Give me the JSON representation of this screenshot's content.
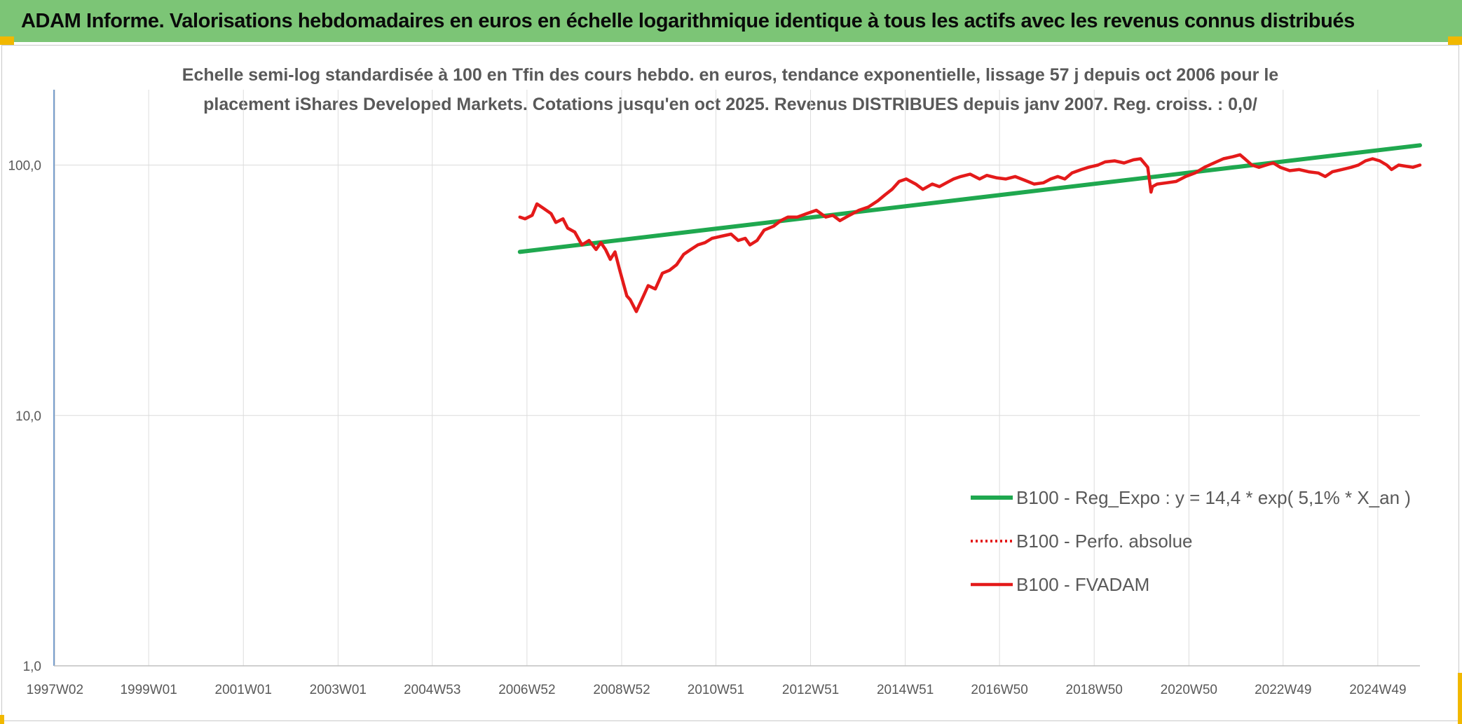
{
  "banner": {
    "title": "ADAM Informe. Valorisations hebdomadaires en euros en échelle logarithmique identique à tous les actifs avec les revenus connus distribués"
  },
  "colors": {
    "banner": "#7cc576",
    "accent_corner": "#f1b800",
    "regression": "#1fa84f",
    "fvadam": "#e41a1a",
    "perfo": "#e41a1a",
    "grid": "#dcdcdc",
    "text": "#595959"
  },
  "chart_data": {
    "type": "line",
    "title_lines": [
      "Echelle semi-log standardisée à 100 en Tfin des cours hebdo. en euros, tendance exponentielle, lissage 57 j depuis oct 2006 pour le",
      "placement iShares Developed Markets. Cotations jusqu'en oct 2025. Revenus DISTRIBUES depuis janv 2007. Reg. croiss. : 0,0/"
    ],
    "y_scale": "log",
    "ylim": [
      1,
      200
    ],
    "xlim": [
      1997.0,
      2025.85
    ],
    "y_ticks": [
      {
        "value": 1,
        "label": "1,0"
      },
      {
        "value": 10,
        "label": "10,0"
      },
      {
        "value": 100,
        "label": "100,0"
      }
    ],
    "x_ticks": [
      {
        "value": 1997.02,
        "label": "1997W02"
      },
      {
        "value": 1999.0,
        "label": "1999W01"
      },
      {
        "value": 2001.0,
        "label": "2001W01"
      },
      {
        "value": 2003.0,
        "label": "2003W01"
      },
      {
        "value": 2004.99,
        "label": "2004W53"
      },
      {
        "value": 2006.99,
        "label": "2006W52"
      },
      {
        "value": 2008.99,
        "label": "2008W52"
      },
      {
        "value": 2010.98,
        "label": "2010W51"
      },
      {
        "value": 2012.98,
        "label": "2012W51"
      },
      {
        "value": 2014.98,
        "label": "2014W51"
      },
      {
        "value": 2016.97,
        "label": "2016W50"
      },
      {
        "value": 2018.97,
        "label": "2018W50"
      },
      {
        "value": 2020.97,
        "label": "2020W50"
      },
      {
        "value": 2022.96,
        "label": "2022W49"
      },
      {
        "value": 2024.96,
        "label": "2024W49"
      }
    ],
    "grid": true,
    "legend_position": "lower-right",
    "series": [
      {
        "name": "B100 - Reg_Expo : y = 14,4 * exp( 5,1% * X_an )",
        "style": "solid-thick",
        "color": "#1fa84f",
        "x": [
          2006.84,
          2025.85
        ],
        "y": [
          45,
          120
        ]
      },
      {
        "name": "B100 - Perfo. absolue",
        "style": "dotted",
        "color": "#e41a1a",
        "x": [],
        "y": []
      },
      {
        "name": "B100 - FVADAM",
        "style": "solid",
        "color": "#e41a1a",
        "x": [
          2006.84,
          2006.95,
          2007.1,
          2007.2,
          2007.35,
          2007.5,
          2007.6,
          2007.75,
          2007.85,
          2008.0,
          2008.15,
          2008.3,
          2008.45,
          2008.55,
          2008.65,
          2008.75,
          2008.85,
          2008.95,
          2009.1,
          2009.17,
          2009.3,
          2009.45,
          2009.55,
          2009.7,
          2009.85,
          2010.0,
          2010.15,
          2010.3,
          2010.45,
          2010.6,
          2010.75,
          2010.9,
          2011.1,
          2011.3,
          2011.45,
          2011.6,
          2011.7,
          2011.85,
          2012.0,
          2012.2,
          2012.35,
          2012.5,
          2012.7,
          2012.9,
          2013.1,
          2013.3,
          2013.45,
          2013.6,
          2013.8,
          2014.0,
          2014.2,
          2014.4,
          2014.55,
          2014.7,
          2014.85,
          2015.0,
          2015.2,
          2015.35,
          2015.55,
          2015.7,
          2015.85,
          2016.0,
          2016.15,
          2016.35,
          2016.55,
          2016.7,
          2016.9,
          2017.1,
          2017.3,
          2017.5,
          2017.7,
          2017.9,
          2018.05,
          2018.2,
          2018.35,
          2018.5,
          2018.7,
          2018.85,
          2019.05,
          2019.2,
          2019.4,
          2019.6,
          2019.8,
          2019.95,
          2020.1,
          2020.17,
          2020.2,
          2020.3,
          2020.5,
          2020.7,
          2020.9,
          2021.1,
          2021.3,
          2021.5,
          2021.7,
          2021.9,
          2022.05,
          2022.15,
          2022.3,
          2022.45,
          2022.6,
          2022.75,
          2022.9,
          2023.1,
          2023.3,
          2023.5,
          2023.7,
          2023.85,
          2024.0,
          2024.2,
          2024.4,
          2024.55,
          2024.7,
          2024.85,
          2025.0,
          2025.15,
          2025.25,
          2025.4,
          2025.55,
          2025.7,
          2025.85
        ],
        "y": [
          62,
          61,
          63,
          70,
          67,
          64,
          59,
          61,
          56,
          54,
          48,
          50,
          46,
          49,
          46,
          42,
          45,
          38,
          30,
          29,
          26,
          30,
          33,
          32,
          37,
          38,
          40,
          44,
          46,
          48,
          49,
          51,
          52,
          53,
          50,
          51,
          48,
          50,
          55,
          57,
          60,
          62,
          62,
          64,
          66,
          62,
          63,
          60,
          63,
          66,
          68,
          72,
          76,
          80,
          86,
          88,
          84,
          80,
          84,
          82,
          85,
          88,
          90,
          92,
          88,
          91,
          89,
          88,
          90,
          87,
          84,
          85,
          88,
          90,
          88,
          93,
          96,
          98,
          100,
          103,
          104,
          102,
          105,
          106,
          98,
          78,
          82,
          84,
          85,
          86,
          90,
          93,
          98,
          102,
          106,
          108,
          110,
          106,
          100,
          98,
          100,
          102,
          98,
          95,
          96,
          94,
          93,
          90,
          94,
          96,
          98,
          100,
          104,
          106,
          104,
          100,
          96,
          100,
          99,
          98,
          100
        ]
      }
    ]
  }
}
